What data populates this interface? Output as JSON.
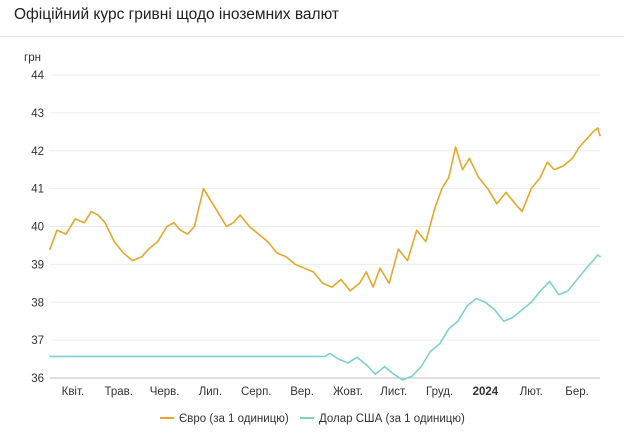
{
  "page_title": "Офіційний курс гривні щодо іноземних валют",
  "chart_data": {
    "type": "line",
    "title": "Офіційний курс гривні щодо іноземних валют",
    "ylabel": "грн",
    "ylim": [
      36,
      44
    ],
    "yticks": [
      "44",
      "43",
      "42",
      "41",
      "40",
      "39",
      "38",
      "37",
      "36"
    ],
    "xlim": [
      0,
      12
    ],
    "xticks": [
      {
        "label": "Квіт.",
        "x": 0.5,
        "bold": false
      },
      {
        "label": "Трав.",
        "x": 1.5,
        "bold": false
      },
      {
        "label": "Черв.",
        "x": 2.5,
        "bold": false
      },
      {
        "label": "Лип.",
        "x": 3.5,
        "bold": false
      },
      {
        "label": "Серп.",
        "x": 4.5,
        "bold": false
      },
      {
        "label": "Вер.",
        "x": 5.5,
        "bold": false
      },
      {
        "label": "Жовт.",
        "x": 6.5,
        "bold": false
      },
      {
        "label": "Лист.",
        "x": 7.5,
        "bold": false
      },
      {
        "label": "Груд.",
        "x": 8.5,
        "bold": false
      },
      {
        "label": "2024",
        "x": 9.5,
        "bold": true
      },
      {
        "label": "Лют.",
        "x": 10.5,
        "bold": false
      },
      {
        "label": "Бер.",
        "x": 11.5,
        "bold": false
      }
    ],
    "grid": true,
    "legend_position": "bottom",
    "series": [
      {
        "name": "Євро (за 1 одиницю)",
        "color": "#e6a82a",
        "x": [
          0,
          0.15,
          0.35,
          0.55,
          0.75,
          0.9,
          1.05,
          1.2,
          1.4,
          1.6,
          1.8,
          2.0,
          2.15,
          2.35,
          2.55,
          2.7,
          2.85,
          3.0,
          3.15,
          3.35,
          3.55,
          3.7,
          3.85,
          4.0,
          4.15,
          4.35,
          4.55,
          4.75,
          4.95,
          5.15,
          5.35,
          5.55,
          5.75,
          5.95,
          6.15,
          6.35,
          6.55,
          6.75,
          6.9,
          7.05,
          7.2,
          7.4,
          7.6,
          7.8,
          8.0,
          8.2,
          8.4,
          8.55,
          8.7,
          8.85,
          9.0,
          9.15,
          9.35,
          9.55,
          9.75,
          9.95,
          10.15,
          10.3,
          10.5,
          10.7,
          10.85,
          11.0,
          11.2,
          11.4,
          11.55,
          11.7,
          11.85,
          11.95,
          12.0
        ],
        "values": [
          39.4,
          39.9,
          39.8,
          40.2,
          40.1,
          40.4,
          40.3,
          40.1,
          39.6,
          39.3,
          39.1,
          39.2,
          39.4,
          39.6,
          40.0,
          40.1,
          39.9,
          39.8,
          40.0,
          41.0,
          40.6,
          40.3,
          40.0,
          40.1,
          40.3,
          40.0,
          39.8,
          39.6,
          39.3,
          39.2,
          39.0,
          38.9,
          38.8,
          38.5,
          38.4,
          38.6,
          38.3,
          38.5,
          38.8,
          38.4,
          38.9,
          38.5,
          39.4,
          39.1,
          39.9,
          39.6,
          40.5,
          41.0,
          41.3,
          42.1,
          41.5,
          41.8,
          41.3,
          41.0,
          40.6,
          40.9,
          40.6,
          40.4,
          41.0,
          41.3,
          41.7,
          41.5,
          41.6,
          41.8,
          42.1,
          42.3,
          42.5,
          42.6,
          42.4
        ]
      },
      {
        "name": "Долар США (за 1 одиницю)",
        "color": "#7fd1d1",
        "x": [
          0,
          2,
          4,
          5.5,
          6.0,
          6.1,
          6.3,
          6.5,
          6.7,
          6.9,
          7.1,
          7.3,
          7.5,
          7.7,
          7.9,
          8.1,
          8.3,
          8.5,
          8.7,
          8.9,
          9.1,
          9.3,
          9.5,
          9.7,
          9.9,
          10.1,
          10.3,
          10.5,
          10.7,
          10.9,
          11.1,
          11.3,
          11.5,
          11.7,
          11.85,
          11.95,
          12.0
        ],
        "values": [
          36.57,
          36.57,
          36.57,
          36.57,
          36.57,
          36.65,
          36.5,
          36.4,
          36.55,
          36.35,
          36.1,
          36.3,
          36.1,
          35.95,
          36.05,
          36.3,
          36.7,
          36.9,
          37.3,
          37.5,
          37.9,
          38.1,
          38.0,
          37.8,
          37.5,
          37.6,
          37.8,
          38.0,
          38.3,
          38.55,
          38.2,
          38.3,
          38.6,
          38.9,
          39.1,
          39.25,
          39.2
        ]
      }
    ]
  }
}
